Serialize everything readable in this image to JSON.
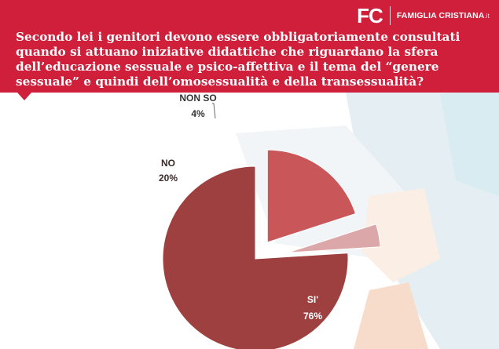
{
  "brand": {
    "logo": "FC",
    "name": "FAMIGLIA CRISTIANA",
    "suffix": ".it"
  },
  "question": "Secondo lei i genitori devono essere obbligatoriamente consultati quando si attuano iniziative didattiche che riguardano la sfera dell’educazione sessuale e psico-affettiva e il tema del “genere sessuale” e quindi dell’omosessualità e della transessualità?",
  "colors": {
    "header": "#cf1f3a",
    "si": "#9e4040",
    "no": "#c9575a",
    "non_so": "#dba7a8"
  },
  "chart_data": {
    "type": "pie",
    "title": "Secondo lei i genitori devono essere obbligatoriamente consultati quando si attuano iniziative didattiche che riguardano la sfera dell’educazione sessuale e psico-affettiva e il tema del “genere sessuale” e quindi dell’omosessualità e della transessualità?",
    "exploded": true,
    "slices": [
      {
        "label": "SI'",
        "value": 76,
        "value_label": "76%"
      },
      {
        "label": "NO",
        "value": 20,
        "value_label": "20%"
      },
      {
        "label": "NON SO",
        "value": 4,
        "value_label": "4%"
      }
    ]
  }
}
